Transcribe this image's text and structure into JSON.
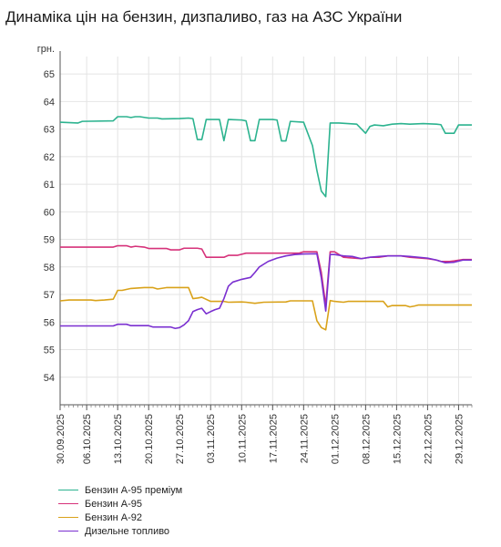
{
  "title": "Динаміка цін на бензин, дизпаливо, газ на АЗС України",
  "chart_data": {
    "type": "line",
    "ylabel": "грн.",
    "ylim": [
      53,
      65.5
    ],
    "yticks": [
      54,
      55,
      56,
      57,
      58,
      59,
      60,
      61,
      62,
      63,
      64,
      65
    ],
    "xlim": [
      "2025-09-30",
      "2026-01-01"
    ],
    "xticks": [
      "30.09.2025",
      "06.10.2025",
      "13.10.2025",
      "20.10.2025",
      "27.10.2025",
      "03.11.2025",
      "10.11.2025",
      "17.11.2025",
      "24.11.2025",
      "01.12.2025",
      "08.12.2025",
      "15.12.2025",
      "22.12.2025",
      "29.12.2025"
    ],
    "grid": true,
    "legend_position": "bottom-left",
    "series": [
      {
        "name": "Бензин А-95 преміум",
        "color": "#2cb38f",
        "points": [
          [
            "2025-09-30",
            63.25
          ],
          [
            "2025-10-04",
            63.22
          ],
          [
            "2025-10-05",
            63.28
          ],
          [
            "2025-10-12",
            63.3
          ],
          [
            "2025-10-13",
            63.45
          ],
          [
            "2025-10-15",
            63.45
          ],
          [
            "2025-10-16",
            63.42
          ],
          [
            "2025-10-17",
            63.45
          ],
          [
            "2025-10-18",
            63.45
          ],
          [
            "2025-10-20",
            63.4
          ],
          [
            "2025-10-22",
            63.4
          ],
          [
            "2025-10-23",
            63.37
          ],
          [
            "2025-10-27",
            63.38
          ],
          [
            "2025-10-29",
            63.4
          ],
          [
            "2025-10-30",
            63.38
          ],
          [
            "2025-10-31",
            62.62
          ],
          [
            "2025-11-01",
            62.62
          ],
          [
            "2025-11-02",
            63.35
          ],
          [
            "2025-11-05",
            63.35
          ],
          [
            "2025-11-06",
            62.58
          ],
          [
            "2025-11-07",
            63.35
          ],
          [
            "2025-11-10",
            63.33
          ],
          [
            "2025-11-11",
            63.3
          ],
          [
            "2025-11-12",
            62.58
          ],
          [
            "2025-11-13",
            62.58
          ],
          [
            "2025-11-14",
            63.35
          ],
          [
            "2025-11-17",
            63.35
          ],
          [
            "2025-11-18",
            63.33
          ],
          [
            "2025-11-19",
            62.57
          ],
          [
            "2025-11-20",
            62.57
          ],
          [
            "2025-11-21",
            63.28
          ],
          [
            "2025-11-24",
            63.25
          ],
          [
            "2025-11-26",
            62.4
          ],
          [
            "2025-11-27",
            61.5
          ],
          [
            "2025-11-28",
            60.75
          ],
          [
            "2025-11-29",
            60.55
          ],
          [
            "2025-11-30",
            63.22
          ],
          [
            "2025-12-02",
            63.22
          ],
          [
            "2025-12-04",
            63.2
          ],
          [
            "2025-12-06",
            63.18
          ],
          [
            "2025-12-08",
            62.85
          ],
          [
            "2025-12-09",
            63.1
          ],
          [
            "2025-12-10",
            63.15
          ],
          [
            "2025-12-12",
            63.12
          ],
          [
            "2025-12-14",
            63.18
          ],
          [
            "2025-12-16",
            63.2
          ],
          [
            "2025-12-18",
            63.18
          ],
          [
            "2025-12-21",
            63.2
          ],
          [
            "2025-12-24",
            63.18
          ],
          [
            "2025-12-25",
            63.16
          ],
          [
            "2025-12-26",
            62.85
          ],
          [
            "2025-12-28",
            62.85
          ],
          [
            "2025-12-29",
            63.15
          ],
          [
            "2026-01-01",
            63.15
          ]
        ]
      },
      {
        "name": "Бензин А-95",
        "color": "#d6327a",
        "points": [
          [
            "2025-09-30",
            58.72
          ],
          [
            "2025-10-12",
            58.72
          ],
          [
            "2025-10-13",
            58.77
          ],
          [
            "2025-10-15",
            58.77
          ],
          [
            "2025-10-16",
            58.72
          ],
          [
            "2025-10-17",
            58.75
          ],
          [
            "2025-10-19",
            58.72
          ],
          [
            "2025-10-20",
            58.67
          ],
          [
            "2025-10-24",
            58.67
          ],
          [
            "2025-10-25",
            58.62
          ],
          [
            "2025-10-27",
            58.62
          ],
          [
            "2025-10-28",
            58.68
          ],
          [
            "2025-10-31",
            58.68
          ],
          [
            "2025-11-01",
            58.65
          ],
          [
            "2025-11-02",
            58.35
          ],
          [
            "2025-11-06",
            58.35
          ],
          [
            "2025-11-07",
            58.42
          ],
          [
            "2025-11-09",
            58.42
          ],
          [
            "2025-11-11",
            58.5
          ],
          [
            "2025-11-23",
            58.5
          ],
          [
            "2025-11-24",
            58.55
          ],
          [
            "2025-11-27",
            58.55
          ],
          [
            "2025-11-28",
            57.8
          ],
          [
            "2025-11-29",
            56.6
          ],
          [
            "2025-11-30",
            58.55
          ],
          [
            "2025-12-01",
            58.55
          ],
          [
            "2025-12-03",
            58.35
          ],
          [
            "2025-12-07",
            58.3
          ],
          [
            "2025-12-09",
            58.35
          ],
          [
            "2025-12-11",
            58.35
          ],
          [
            "2025-12-13",
            58.4
          ],
          [
            "2025-12-16",
            58.4
          ],
          [
            "2025-12-18",
            58.35
          ],
          [
            "2025-12-22",
            58.3
          ],
          [
            "2025-12-24",
            58.25
          ],
          [
            "2025-12-25",
            58.2
          ],
          [
            "2025-12-27",
            58.2
          ],
          [
            "2025-12-28",
            58.22
          ],
          [
            "2025-12-30",
            58.27
          ],
          [
            "2026-01-01",
            58.27
          ]
        ]
      },
      {
        "name": "Бензин А-92",
        "color": "#d9a21a",
        "points": [
          [
            "2025-09-30",
            56.77
          ],
          [
            "2025-10-02",
            56.8
          ],
          [
            "2025-10-07",
            56.8
          ],
          [
            "2025-10-08",
            56.78
          ],
          [
            "2025-10-10",
            56.8
          ],
          [
            "2025-10-12",
            56.83
          ],
          [
            "2025-10-13",
            57.15
          ],
          [
            "2025-10-14",
            57.15
          ],
          [
            "2025-10-16",
            57.22
          ],
          [
            "2025-10-19",
            57.25
          ],
          [
            "2025-10-21",
            57.25
          ],
          [
            "2025-10-22",
            57.2
          ],
          [
            "2025-10-24",
            57.25
          ],
          [
            "2025-10-29",
            57.25
          ],
          [
            "2025-10-30",
            56.85
          ],
          [
            "2025-10-31",
            56.87
          ],
          [
            "2025-11-01",
            56.9
          ],
          [
            "2025-11-03",
            56.75
          ],
          [
            "2025-11-06",
            56.75
          ],
          [
            "2025-11-07",
            56.72
          ],
          [
            "2025-11-10",
            56.73
          ],
          [
            "2025-11-11",
            56.72
          ],
          [
            "2025-11-13",
            56.68
          ],
          [
            "2025-11-15",
            56.72
          ],
          [
            "2025-11-20",
            56.73
          ],
          [
            "2025-11-21",
            56.77
          ],
          [
            "2025-11-26",
            56.77
          ],
          [
            "2025-11-27",
            56.05
          ],
          [
            "2025-11-28",
            55.8
          ],
          [
            "2025-11-29",
            55.72
          ],
          [
            "2025-11-30",
            56.78
          ],
          [
            "2025-12-01",
            56.75
          ],
          [
            "2025-12-03",
            56.72
          ],
          [
            "2025-12-04",
            56.75
          ],
          [
            "2025-12-12",
            56.75
          ],
          [
            "2025-12-13",
            56.55
          ],
          [
            "2025-12-14",
            56.6
          ],
          [
            "2025-12-17",
            56.6
          ],
          [
            "2025-12-18",
            56.55
          ],
          [
            "2025-12-19",
            56.58
          ],
          [
            "2025-12-20",
            56.62
          ],
          [
            "2026-01-01",
            56.62
          ]
        ]
      },
      {
        "name": "Дизельне топливо",
        "color": "#7a2fd0",
        "points": [
          [
            "2025-09-30",
            55.86
          ],
          [
            "2025-10-12",
            55.86
          ],
          [
            "2025-10-13",
            55.92
          ],
          [
            "2025-10-15",
            55.92
          ],
          [
            "2025-10-16",
            55.87
          ],
          [
            "2025-10-20",
            55.87
          ],
          [
            "2025-10-21",
            55.82
          ],
          [
            "2025-10-25",
            55.82
          ],
          [
            "2025-10-26",
            55.77
          ],
          [
            "2025-10-27",
            55.8
          ],
          [
            "2025-10-28",
            55.9
          ],
          [
            "2025-10-29",
            56.05
          ],
          [
            "2025-10-30",
            56.38
          ],
          [
            "2025-10-31",
            56.45
          ],
          [
            "2025-11-01",
            56.5
          ],
          [
            "2025-11-02",
            56.3
          ],
          [
            "2025-11-03",
            56.38
          ],
          [
            "2025-11-04",
            56.45
          ],
          [
            "2025-11-05",
            56.5
          ],
          [
            "2025-11-06",
            56.85
          ],
          [
            "2025-11-07",
            57.3
          ],
          [
            "2025-11-08",
            57.45
          ],
          [
            "2025-11-10",
            57.55
          ],
          [
            "2025-11-12",
            57.62
          ],
          [
            "2025-11-13",
            57.8
          ],
          [
            "2025-11-14",
            58.0
          ],
          [
            "2025-11-16",
            58.2
          ],
          [
            "2025-11-18",
            58.32
          ],
          [
            "2025-11-20",
            58.4
          ],
          [
            "2025-11-22",
            58.45
          ],
          [
            "2025-11-24",
            58.47
          ],
          [
            "2025-11-27",
            58.48
          ],
          [
            "2025-11-28",
            57.6
          ],
          [
            "2025-11-29",
            56.4
          ],
          [
            "2025-11-30",
            58.45
          ],
          [
            "2025-12-01",
            58.45
          ],
          [
            "2025-12-03",
            58.4
          ],
          [
            "2025-12-05",
            58.38
          ],
          [
            "2025-12-07",
            58.3
          ],
          [
            "2025-12-09",
            58.35
          ],
          [
            "2025-12-11",
            58.38
          ],
          [
            "2025-12-13",
            58.4
          ],
          [
            "2025-12-16",
            58.4
          ],
          [
            "2025-12-18",
            58.38
          ],
          [
            "2025-12-22",
            58.32
          ],
          [
            "2025-12-24",
            58.25
          ],
          [
            "2025-12-26",
            58.15
          ],
          [
            "2025-12-28",
            58.17
          ],
          [
            "2025-12-30",
            58.25
          ],
          [
            "2026-01-01",
            58.25
          ]
        ]
      }
    ]
  }
}
